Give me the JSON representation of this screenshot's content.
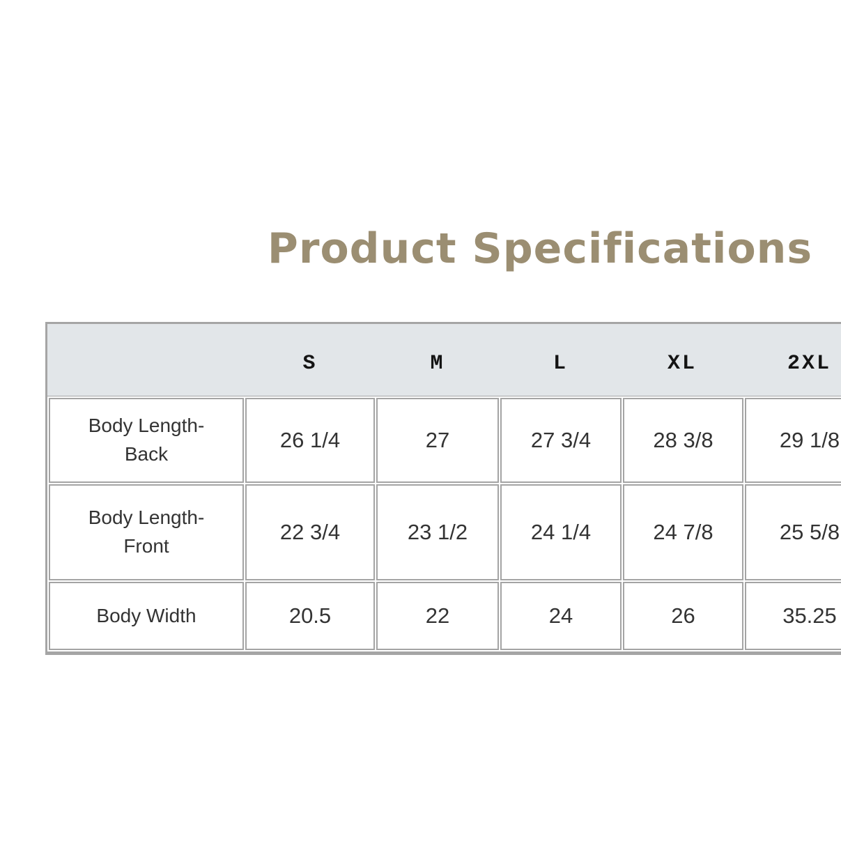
{
  "colors": {
    "title": "#9b8e72",
    "header_background": "#e2e6e9",
    "cell_border": "#a4a4a4",
    "body_text": "#333333"
  },
  "chart_data": {
    "type": "table",
    "title": "Product Specifications",
    "columns": [
      "",
      "S",
      "M",
      "L",
      "XL",
      "2XL"
    ],
    "rows": [
      [
        "Body Length-Back",
        "26 1/4",
        "27",
        "27 3/4",
        "28 3/8",
        "29 1/8"
      ],
      [
        "Body Length-Front",
        "22 3/4",
        "23 1/2",
        "24 1/4",
        "24 7/8",
        "25 5/8"
      ],
      [
        "Body Width",
        "20.5",
        "22",
        "24",
        "26",
        "35.25"
      ]
    ]
  }
}
